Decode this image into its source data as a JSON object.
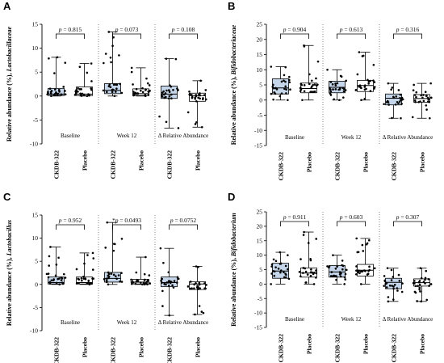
{
  "colors": {
    "ckdb_fill": "#c5d6ea",
    "placebo_fill": "#ffffff",
    "stroke": "#000000"
  },
  "chart_data": [
    {
      "panel": "A",
      "type": "box",
      "ylabel_plain": "Relative abundance (%), ",
      "ylabel_italic": "Lactobacillaceae",
      "ylim": [
        -10,
        15
      ],
      "yticks": [
        -10,
        -5,
        0,
        5,
        10,
        15
      ],
      "categories": [
        "CKDB-322",
        "Placebo",
        "CKDB-322",
        "Placebo",
        "CKDB-322",
        "Placebo"
      ],
      "groups": [
        "Baseline",
        "Week 12",
        "Δ Relative Abundance"
      ],
      "pvalues": [
        "= 0.815",
        "= 0.073",
        "= 0.108"
      ],
      "pvalue_stars": [
        "",
        "",
        ""
      ],
      "boxes": [
        {
          "min": 0,
          "q1": 0.1,
          "median": 0.4,
          "q3": 1.6,
          "max": 8.1
        },
        {
          "min": 0,
          "q1": 0.1,
          "median": 0.4,
          "q3": 1.9,
          "max": 6.8
        },
        {
          "min": 0,
          "q1": 0.5,
          "median": 1.2,
          "q3": 2.6,
          "max": 13.4
        },
        {
          "min": 0,
          "q1": 0.1,
          "median": 0.5,
          "q3": 1.5,
          "max": 5.9
        },
        {
          "min": -6.7,
          "q1": -0.5,
          "median": 0.4,
          "q3": 2.1,
          "max": 7.8
        },
        {
          "min": -6.5,
          "q1": -1.1,
          "median": 0.1,
          "q3": 0.6,
          "max": 3.2
        }
      ]
    },
    {
      "panel": "B",
      "type": "box",
      "ylabel_plain": "Relative abundance (%), ",
      "ylabel_italic": "Bifidobacteriaceae",
      "ylim": [
        -15,
        25
      ],
      "yticks": [
        -15,
        -10,
        -5,
        0,
        5,
        10,
        15,
        20,
        25
      ],
      "categories": [
        "CKDB-322",
        "Placebo",
        "CKDB-322",
        "Placebo",
        "CKDB-322",
        "Placebo"
      ],
      "groups": [
        "Baseline",
        "Week 12",
        "Δ Relative Abundance"
      ],
      "pvalues": [
        "= 0.904",
        "= 0.613",
        "= 0.316"
      ],
      "pvalue_stars": [
        "",
        "",
        ""
      ],
      "boxes": [
        {
          "min": 0,
          "q1": 2.0,
          "median": 4.0,
          "q3": 7.0,
          "max": 11.0
        },
        {
          "min": 0,
          "q1": 2.4,
          "median": 3.8,
          "q3": 5.6,
          "max": 18.0
        },
        {
          "min": 0,
          "q1": 2.4,
          "median": 4.2,
          "q3": 6.2,
          "max": 10.0
        },
        {
          "min": 0,
          "q1": 2.8,
          "median": 4.8,
          "q3": 6.5,
          "max": 15.8
        },
        {
          "min": -6.0,
          "q1": -1.6,
          "median": 0.6,
          "q3": 2.0,
          "max": 5.5
        },
        {
          "min": -6.0,
          "q1": -0.7,
          "median": 0.5,
          "q3": 1.8,
          "max": 5.5
        }
      ]
    },
    {
      "panel": "C",
      "type": "box",
      "ylabel_plain": "Relative abundance (%), ",
      "ylabel_italic": "Lactobacillus",
      "ylim": [
        -10,
        15
      ],
      "yticks": [
        -10,
        -5,
        0,
        5,
        10,
        15
      ],
      "categories": [
        "CKDB-322",
        "Placebo",
        "CKDB-322",
        "Placebo",
        "CKDB-322",
        "Placebo"
      ],
      "groups": [
        "Baseline",
        "Week 12",
        "Δ Relative Abundance"
      ],
      "pvalues": [
        "= 0.952",
        "= 0.0493",
        "= 0.0752"
      ],
      "pvalue_stars": [
        "",
        "*",
        ""
      ],
      "boxes": [
        {
          "min": 0,
          "q1": 0.1,
          "median": 0.4,
          "q3": 1.6,
          "max": 8.1
        },
        {
          "min": 0,
          "q1": 0.1,
          "median": 0.4,
          "q3": 1.6,
          "max": 6.8
        },
        {
          "min": 0,
          "q1": 0.5,
          "median": 1.3,
          "q3": 2.6,
          "max": 13.4
        },
        {
          "min": 0,
          "q1": 0.1,
          "median": 0.5,
          "q3": 1.1,
          "max": 5.9
        },
        {
          "min": -6.7,
          "q1": -0.5,
          "median": 0.4,
          "q3": 1.6,
          "max": 7.8
        },
        {
          "min": -6.5,
          "q1": -1.1,
          "median": 0.1,
          "q3": 0.6,
          "max": 3.9
        }
      ]
    },
    {
      "panel": "D",
      "type": "box",
      "ylabel_plain": "Relative abundance (%), ",
      "ylabel_italic": "Bifidobacterium",
      "ylim": [
        -15,
        25
      ],
      "yticks": [
        -15,
        -10,
        -5,
        0,
        5,
        10,
        15,
        20,
        25
      ],
      "categories": [
        "CKDB-322",
        "Placebo",
        "CKDB-322",
        "Placebo",
        "CKDB-322",
        "Placebo"
      ],
      "groups": [
        "Baseline",
        "Week 12",
        "Δ Relative Abundance"
      ],
      "pvalues": [
        "= 0.911",
        "= 0.603",
        "= 0.307"
      ],
      "pvalue_stars": [
        "",
        "",
        ""
      ],
      "boxes": [
        {
          "min": 0,
          "q1": 2.0,
          "median": 4.5,
          "q3": 7.2,
          "max": 11.0
        },
        {
          "min": 0,
          "q1": 2.4,
          "median": 3.8,
          "q3": 5.6,
          "max": 18.0
        },
        {
          "min": 0,
          "q1": 2.4,
          "median": 4.2,
          "q3": 6.4,
          "max": 10.0
        },
        {
          "min": 0,
          "q1": 2.8,
          "median": 4.8,
          "q3": 6.8,
          "max": 15.8
        },
        {
          "min": -6.0,
          "q1": -1.6,
          "median": 0.6,
          "q3": 2.0,
          "max": 5.5
        },
        {
          "min": -6.0,
          "q1": -0.7,
          "median": 0.5,
          "q3": 1.8,
          "max": 5.5
        }
      ]
    }
  ]
}
